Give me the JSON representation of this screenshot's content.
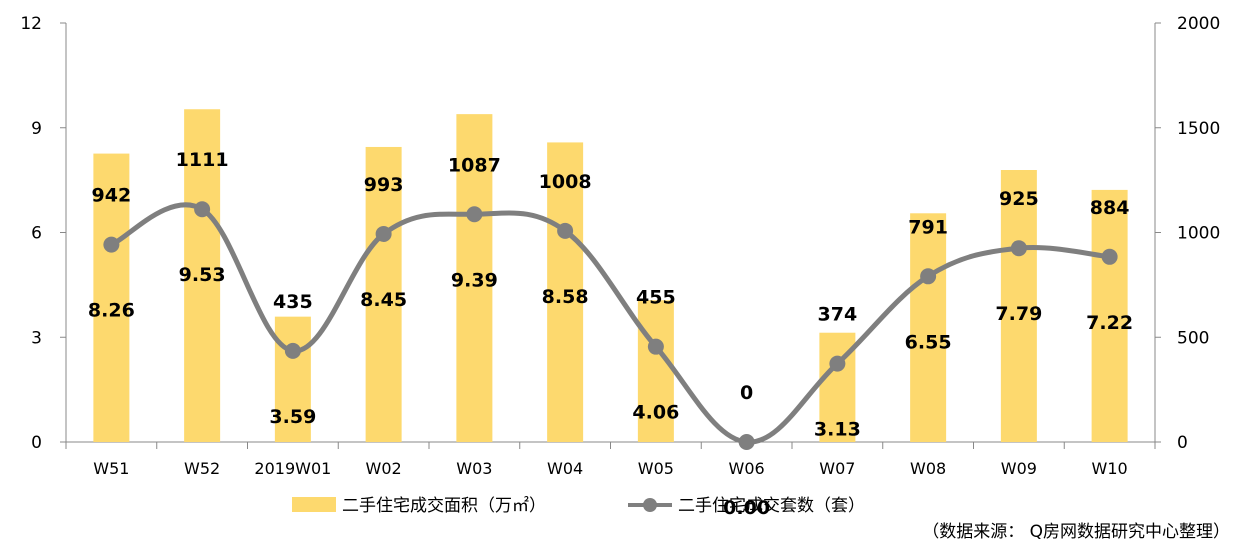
{
  "chart_data": {
    "type": "bar+line",
    "categories": [
      "W51",
      "W52",
      "2019W01",
      "W02",
      "W03",
      "W04",
      "W05",
      "W06",
      "W07",
      "W08",
      "W09",
      "W10"
    ],
    "series": [
      {
        "name": "二手住宅成交面积（万㎡）",
        "type": "bar",
        "axis": "left",
        "color": "#FDD96E",
        "values": [
          8.26,
          9.53,
          3.59,
          8.45,
          9.39,
          8.58,
          4.06,
          0.0,
          3.13,
          6.55,
          7.79,
          7.22
        ],
        "labels": [
          "8.26",
          "9.53",
          "3.59",
          "8.45",
          "9.39",
          "8.58",
          "4.06",
          "0.00",
          "3.13",
          "6.55",
          "7.79",
          "7.22"
        ]
      },
      {
        "name": "二手住宅成交套数（套）",
        "type": "line",
        "axis": "right",
        "color": "#7F7F7F",
        "values": [
          942,
          1111,
          435,
          993,
          1087,
          1008,
          455,
          0,
          374,
          791,
          925,
          884
        ],
        "labels": [
          "942",
          "1111",
          "435",
          "993",
          "1087",
          "1008",
          "455",
          "0",
          "374",
          "791",
          "925",
          "884"
        ]
      }
    ],
    "y_left": {
      "min": 0,
      "max": 12,
      "ticks": [
        "0",
        "3",
        "6",
        "9",
        "12"
      ]
    },
    "y_right": {
      "min": 0,
      "max": 2000,
      "ticks": [
        "0",
        "500",
        "1000",
        "1500",
        "2000"
      ]
    },
    "grid": false,
    "legend_position": "bottom"
  },
  "source_note": "（数据来源： Q房网数据研究中心整理）"
}
